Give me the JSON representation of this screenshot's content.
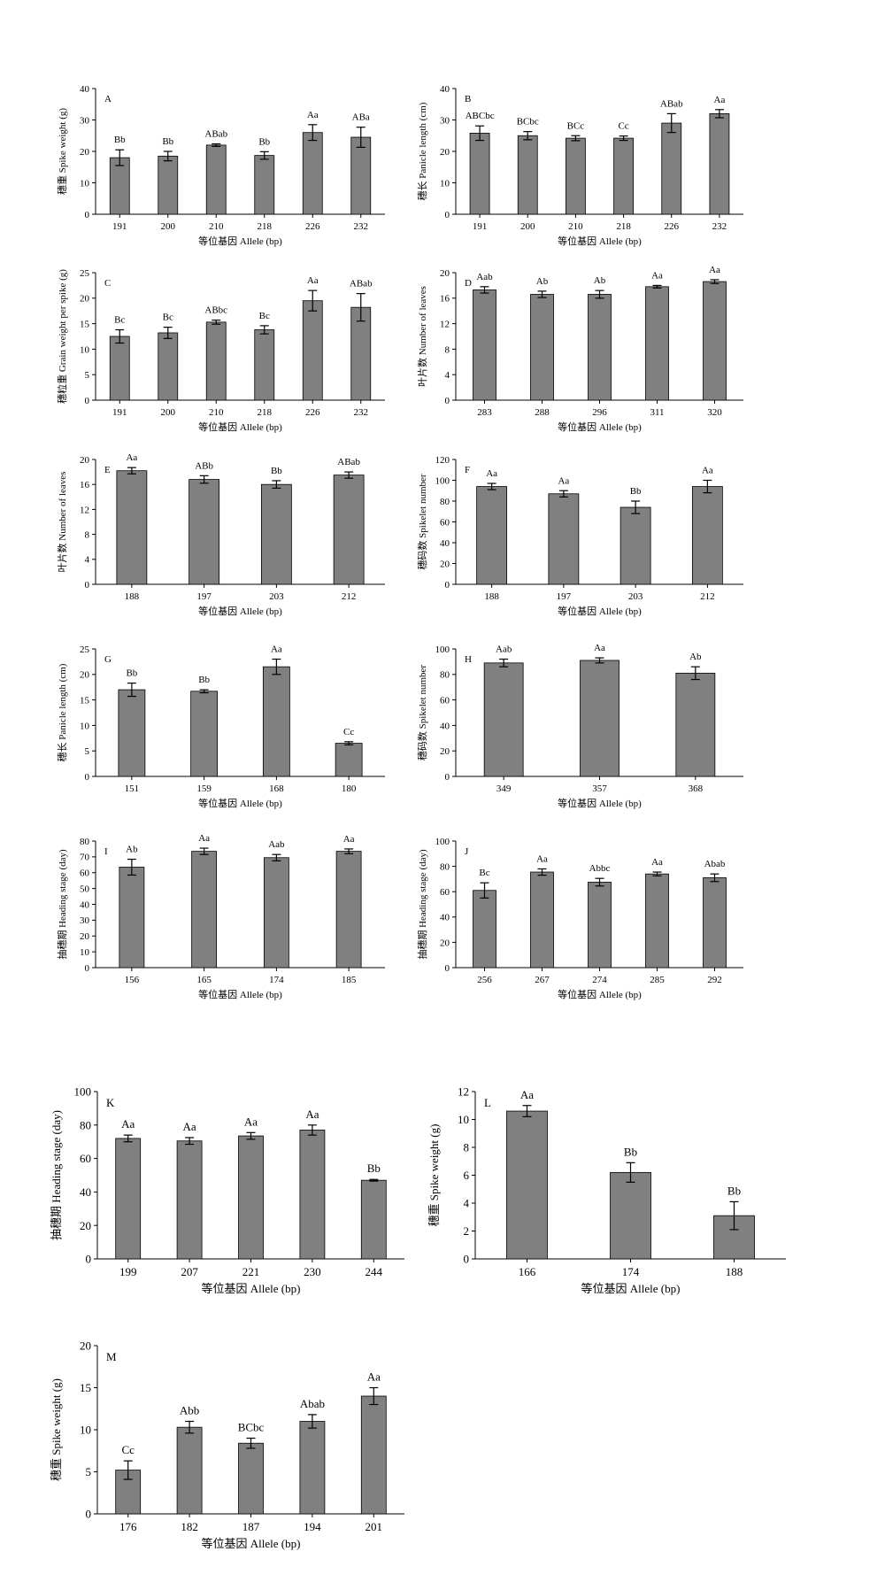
{
  "figure": {
    "background": "#ffffff",
    "bar_color": "#808080",
    "axis_color": "#000000"
  },
  "chart_data": [
    {
      "panel": "A",
      "type": "bar",
      "categories": [
        "191",
        "200",
        "210",
        "218",
        "226",
        "232"
      ],
      "values": [
        18,
        18.5,
        22,
        18.7,
        26,
        24.5
      ],
      "errors": [
        2.5,
        1.5,
        0.4,
        1.2,
        2.5,
        3.2
      ],
      "labels": [
        "Bb",
        "Bb",
        "ABab",
        "Bb",
        "Aa",
        "ABa"
      ],
      "ylim": [
        0,
        40
      ],
      "yticks": [
        0,
        10,
        20,
        30,
        40
      ],
      "ylabel": "穗重 Spike weight (g)",
      "xlabel": "等位基因 Allele (bp)"
    },
    {
      "panel": "B",
      "type": "bar",
      "categories": [
        "191",
        "200",
        "210",
        "218",
        "226",
        "232"
      ],
      "values": [
        25.8,
        25,
        24.2,
        24.2,
        29,
        32
      ],
      "errors": [
        2.3,
        1.3,
        0.8,
        0.7,
        3,
        1.3
      ],
      "labels": [
        "ABCbc",
        "BCbc",
        "BCc",
        "Cc",
        "ABab",
        "Aa"
      ],
      "ylim": [
        0,
        40
      ],
      "yticks": [
        0,
        10,
        20,
        30,
        40
      ],
      "ylabel": "穗长 Panicle length (cm)",
      "xlabel": "等位基因 Allele (bp)"
    },
    {
      "panel": "C",
      "type": "bar",
      "categories": [
        "191",
        "200",
        "210",
        "218",
        "226",
        "232"
      ],
      "values": [
        12.5,
        13.2,
        15.3,
        13.8,
        19.5,
        18.2
      ],
      "errors": [
        1.3,
        1.1,
        0.4,
        0.8,
        2.0,
        2.7
      ],
      "labels": [
        "Bc",
        "Bc",
        "ABbc",
        "Bc",
        "Aa",
        "ABab"
      ],
      "ylim": [
        0,
        25
      ],
      "yticks": [
        0,
        5,
        10,
        15,
        20,
        25
      ],
      "ylabel": "穗粒重 Grain weight per spike (g)",
      "xlabel": "等位基因 Allele (bp)"
    },
    {
      "panel": "D",
      "type": "bar",
      "categories": [
        "283",
        "288",
        "296",
        "311",
        "320"
      ],
      "values": [
        17.3,
        16.6,
        16.6,
        17.8,
        18.6
      ],
      "errors": [
        0.5,
        0.5,
        0.6,
        0.2,
        0.3
      ],
      "labels": [
        "Aab",
        "Ab",
        "Ab",
        "Aa",
        "Aa"
      ],
      "ylim": [
        0,
        20
      ],
      "yticks": [
        0,
        4,
        8,
        12,
        16,
        20
      ],
      "ylabel": "叶片数 Number of leaves",
      "xlabel": "等位基因 Allele (bp)"
    },
    {
      "panel": "E",
      "type": "bar",
      "categories": [
        "188",
        "197",
        "203",
        "212"
      ],
      "values": [
        18.2,
        16.8,
        16,
        17.5
      ],
      "errors": [
        0.5,
        0.6,
        0.6,
        0.5
      ],
      "labels": [
        "Aa",
        "ABb",
        "Bb",
        "ABab"
      ],
      "ylim": [
        0,
        20
      ],
      "yticks": [
        0,
        4,
        8,
        12,
        16,
        20
      ],
      "ylabel": "叶片数 Number of leaves",
      "xlabel": "等位基因 Allele (bp)"
    },
    {
      "panel": "F",
      "type": "bar",
      "categories": [
        "188",
        "197",
        "203",
        "212"
      ],
      "values": [
        94,
        87,
        74,
        94
      ],
      "errors": [
        3,
        3,
        6,
        6
      ],
      "labels": [
        "Aa",
        "Aa",
        "Bb",
        "Aa"
      ],
      "ylim": [
        0,
        120
      ],
      "yticks": [
        0,
        20,
        40,
        60,
        80,
        100,
        120
      ],
      "ylabel": "穗码数 Spikelet number",
      "xlabel": "等位基因 Allele (bp)"
    },
    {
      "panel": "G",
      "type": "bar",
      "categories": [
        "151",
        "159",
        "168",
        "180"
      ],
      "values": [
        17,
        16.7,
        21.5,
        6.5
      ],
      "errors": [
        1.3,
        0.3,
        1.5,
        0.3
      ],
      "labels": [
        "Bb",
        "Bb",
        "Aa",
        "Cc"
      ],
      "ylim": [
        0,
        25
      ],
      "yticks": [
        0,
        5,
        10,
        15,
        20,
        25
      ],
      "ylabel": "穗长 Panicle length (cm)",
      "xlabel": "等位基因 Allele (bp)"
    },
    {
      "panel": "H",
      "type": "bar",
      "categories": [
        "349",
        "357",
        "368"
      ],
      "values": [
        89,
        91,
        81
      ],
      "errors": [
        3,
        2,
        5
      ],
      "labels": [
        "Aab",
        "Aa",
        "Ab"
      ],
      "ylim": [
        0,
        100
      ],
      "yticks": [
        0,
        20,
        40,
        60,
        80,
        100
      ],
      "ylabel": "穗码数 Spikelet number",
      "xlabel": "等位基因 Allele (bp)"
    },
    {
      "panel": "I",
      "type": "bar",
      "categories": [
        "156",
        "165",
        "174",
        "185"
      ],
      "values": [
        63.5,
        73.5,
        69.5,
        73.5
      ],
      "errors": [
        5,
        2,
        2,
        1.5
      ],
      "labels": [
        "Ab",
        "Aa",
        "Aab",
        "Aa"
      ],
      "ylim": [
        0,
        80
      ],
      "yticks": [
        0,
        10,
        20,
        30,
        40,
        50,
        60,
        70,
        80
      ],
      "ylabel": "抽穗期 Heading stage (day)",
      "xlabel": "等位基因 Allele (bp)"
    },
    {
      "panel": "J",
      "type": "bar",
      "categories": [
        "256",
        "267",
        "274",
        "285",
        "292"
      ],
      "values": [
        61,
        75.5,
        67.5,
        74,
        71
      ],
      "errors": [
        6,
        2.5,
        3,
        1.5,
        3
      ],
      "labels": [
        "Bc",
        "Aa",
        "Abbc",
        "Aa",
        "Abab"
      ],
      "ylim": [
        0,
        100
      ],
      "yticks": [
        0,
        20,
        40,
        60,
        80,
        100
      ],
      "ylabel": "抽穗期 Heading stage (day)",
      "xlabel": "等位基因 Allele (bp)"
    },
    {
      "panel": "K",
      "type": "bar",
      "categories": [
        "199",
        "207",
        "221",
        "230",
        "244"
      ],
      "values": [
        72,
        70.5,
        73.5,
        77,
        47
      ],
      "errors": [
        2,
        2,
        2,
        3,
        0.5
      ],
      "labels": [
        "Aa",
        "Aa",
        "Aa",
        "Aa",
        "Bb"
      ],
      "ylim": [
        0,
        100
      ],
      "yticks": [
        0,
        20,
        40,
        60,
        80,
        100
      ],
      "ylabel": "抽穗期 Heading stage (day)",
      "xlabel": "等位基因 Allele (bp)"
    },
    {
      "panel": "L",
      "type": "bar",
      "categories": [
        "166",
        "174",
        "188"
      ],
      "values": [
        10.6,
        6.2,
        3.1
      ],
      "errors": [
        0.4,
        0.7,
        1.0
      ],
      "labels": [
        "Aa",
        "Bb",
        "Bb"
      ],
      "ylim": [
        0,
        12
      ],
      "yticks": [
        0,
        2,
        4,
        6,
        8,
        10,
        12
      ],
      "ylabel": "穗重 Spike weight (g)",
      "xlabel": "等位基因 Allele (bp)"
    },
    {
      "panel": "M",
      "type": "bar",
      "categories": [
        "176",
        "182",
        "187",
        "194",
        "201"
      ],
      "values": [
        5.2,
        10.3,
        8.4,
        11,
        14
      ],
      "errors": [
        1.1,
        0.7,
        0.6,
        0.8,
        1.0
      ],
      "labels": [
        "Cc",
        "Abb",
        "BCbc",
        "Abab",
        "Aa"
      ],
      "ylim": [
        0,
        20
      ],
      "yticks": [
        0,
        5,
        10,
        15,
        20
      ],
      "ylabel": "穗重 Spike weight (g)",
      "xlabel": "等位基因 Allele (bp)"
    }
  ]
}
